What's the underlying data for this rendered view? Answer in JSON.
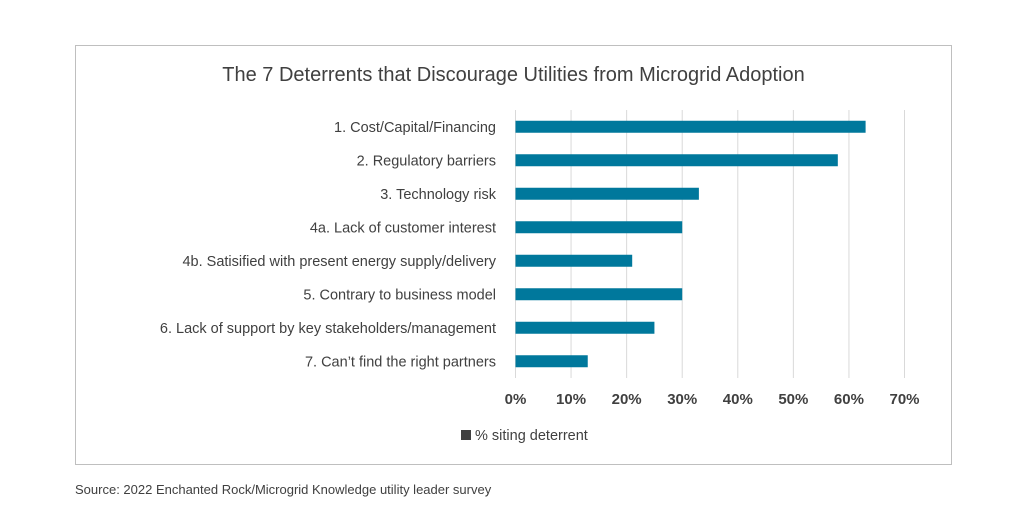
{
  "chart_data": {
    "type": "bar",
    "orientation": "horizontal",
    "title": "The 7 Deterrents that Discourage Utilities from Microgrid Adoption",
    "categories": [
      "1. Cost/Capital/Financing",
      "2. Regulatory barriers",
      "3. Technology risk",
      "4a. Lack of customer interest",
      "4b. Satisified with present energy supply/delivery",
      "5. Contrary to business model",
      "6. Lack of support by key stakeholders/management",
      "7. Can’t find the right partners"
    ],
    "series": [
      {
        "name": "% siting deterrent",
        "values": [
          63,
          58,
          33,
          30,
          21,
          30,
          25,
          13
        ]
      }
    ],
    "xlim": [
      0,
      70
    ],
    "xticks": [
      "0%",
      "10%",
      "20%",
      "30%",
      "40%",
      "50%",
      "60%",
      "70%"
    ],
    "grid": "vertical",
    "legend": "bottom",
    "bar_color": "#00789c"
  },
  "source": "Source: 2022 Enchanted Rock/Microgrid Knowledge utility leader survey"
}
